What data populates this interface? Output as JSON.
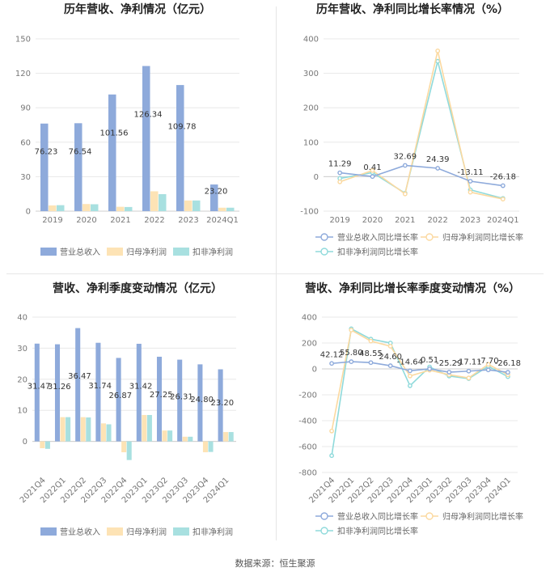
{
  "footer": {
    "source": "数据来源：恒生聚源"
  },
  "colors": {
    "revenue": "#8eaadb",
    "net_profit": "#fde3b5",
    "deducted_profit": "#a8e0e0",
    "revenue_line": "#8eaadb",
    "net_profit_line": "#fbd9a0",
    "deducted_line": "#8fdadb",
    "grid": "#e8e8e8",
    "axis_text": "#777777",
    "title": "#222222"
  },
  "chart_data": [
    {
      "id": "annual-amounts",
      "type": "bar",
      "title": "历年营收、净利情况（亿元）",
      "categories": [
        "2019",
        "2020",
        "2021",
        "2022",
        "2023",
        "2024Q1"
      ],
      "ylim": [
        0,
        150
      ],
      "yticks": [
        0,
        30,
        60,
        90,
        120,
        150
      ],
      "grid": true,
      "legend_position": "bottom",
      "series": [
        {
          "name": "营业总收入",
          "color_key": "revenue",
          "values": [
            76.23,
            76.54,
            101.56,
            126.34,
            109.78,
            23.2
          ],
          "labels": [
            "76.23",
            "76.54",
            "101.56",
            "126.34",
            "109.78",
            "23.20"
          ]
        },
        {
          "name": "归母净利润",
          "color_key": "net_profit",
          "values": [
            5.0,
            6.2,
            3.8,
            17.3,
            9.3,
            3.0
          ]
        },
        {
          "name": "扣非净利润",
          "color_key": "deducted_profit",
          "values": [
            5.2,
            6.0,
            3.6,
            14.8,
            9.3,
            3.0
          ]
        }
      ]
    },
    {
      "id": "annual-growth",
      "type": "line",
      "title": "历年营收、净利同比增长率情况（%）",
      "categories": [
        "2019",
        "2020",
        "2021",
        "2022",
        "2023",
        "2024Q1"
      ],
      "ylim": [
        -100,
        400
      ],
      "yticks": [
        -100,
        0,
        100,
        200,
        300,
        400
      ],
      "grid": true,
      "legend_position": "bottom",
      "series": [
        {
          "name": "营业总收入同比增长率",
          "color_key": "revenue_line",
          "values": [
            11.29,
            0.41,
            32.69,
            24.39,
            -13.11,
            -26.18
          ],
          "labels": [
            "11.29",
            "0.41",
            "32.69",
            "24.39",
            "-13.11",
            "-26.18"
          ]
        },
        {
          "name": "归母净利润同比增长率",
          "color_key": "net_profit_line",
          "values": [
            -15,
            18,
            -50,
            365,
            -45,
            -65
          ]
        },
        {
          "name": "扣非净利润同比增长率",
          "color_key": "deducted_line",
          "values": [
            -5,
            12,
            -48,
            335,
            -38,
            -63
          ]
        }
      ]
    },
    {
      "id": "quarterly-amounts",
      "type": "bar",
      "title": "营收、净利季度变动情况（亿元）",
      "categories": [
        "2021Q4",
        "2022Q1",
        "2022Q2",
        "2022Q3",
        "2022Q4",
        "2023Q1",
        "2023Q2",
        "2023Q3",
        "2023Q4",
        "2024Q1"
      ],
      "ylim": [
        -10,
        40
      ],
      "yticks": [
        0,
        10,
        20,
        30,
        40
      ],
      "grid": true,
      "legend_position": "bottom",
      "series": [
        {
          "name": "营业总收入",
          "color_key": "revenue",
          "values": [
            31.47,
            31.26,
            36.47,
            31.74,
            26.87,
            31.42,
            27.25,
            26.31,
            24.8,
            23.2
          ],
          "labels": [
            "31.47",
            "31.26",
            "36.47",
            "31.74",
            "26.87",
            "31.42",
            "27.25",
            "26.31",
            "24.80",
            "23.20"
          ]
        },
        {
          "name": "归母净利润",
          "color_key": "net_profit",
          "values": [
            -2.2,
            7.8,
            7.8,
            5.8,
            -3.5,
            8.5,
            3.5,
            1.5,
            -3.5,
            3.0
          ]
        },
        {
          "name": "扣非净利润",
          "color_key": "deducted_profit",
          "values": [
            -2.4,
            7.8,
            7.7,
            5.5,
            -6.0,
            8.5,
            3.5,
            1.5,
            -3.4,
            3.0
          ]
        }
      ]
    },
    {
      "id": "quarterly-growth",
      "type": "line",
      "title": "营收、净利同比增长率季度变动情况（%）",
      "categories": [
        "2021Q4",
        "2022Q1",
        "2022Q2",
        "2022Q3",
        "2022Q4",
        "2023Q1",
        "2023Q2",
        "2023Q3",
        "2023Q4",
        "2024Q1"
      ],
      "ylim": [
        -800,
        400
      ],
      "yticks": [
        -800,
        -600,
        -400,
        -200,
        0,
        200,
        400
      ],
      "grid": true,
      "legend_position": "bottom",
      "series": [
        {
          "name": "营业总收入同比增长率",
          "color_key": "revenue_line",
          "values": [
            42.12,
            55.8,
            48.55,
            24.6,
            -14.64,
            0.51,
            -25.29,
            -17.11,
            -7.7,
            -26.18
          ],
          "labels": [
            "42.12",
            "55.80",
            "48.55",
            "24.60",
            "-14.64",
            "0.51",
            "-25.29",
            "-17.11",
            "-7.70",
            "-26.18"
          ]
        },
        {
          "name": "归母净利润同比增长率",
          "color_key": "net_profit_line",
          "values": [
            -480,
            300,
            215,
            175,
            -55,
            -10,
            -45,
            -70,
            35,
            -45
          ]
        },
        {
          "name": "扣非净利润同比增长率",
          "color_key": "deducted_line",
          "values": [
            -670,
            310,
            230,
            200,
            -130,
            15,
            -55,
            -75,
            20,
            -60
          ]
        }
      ]
    }
  ]
}
